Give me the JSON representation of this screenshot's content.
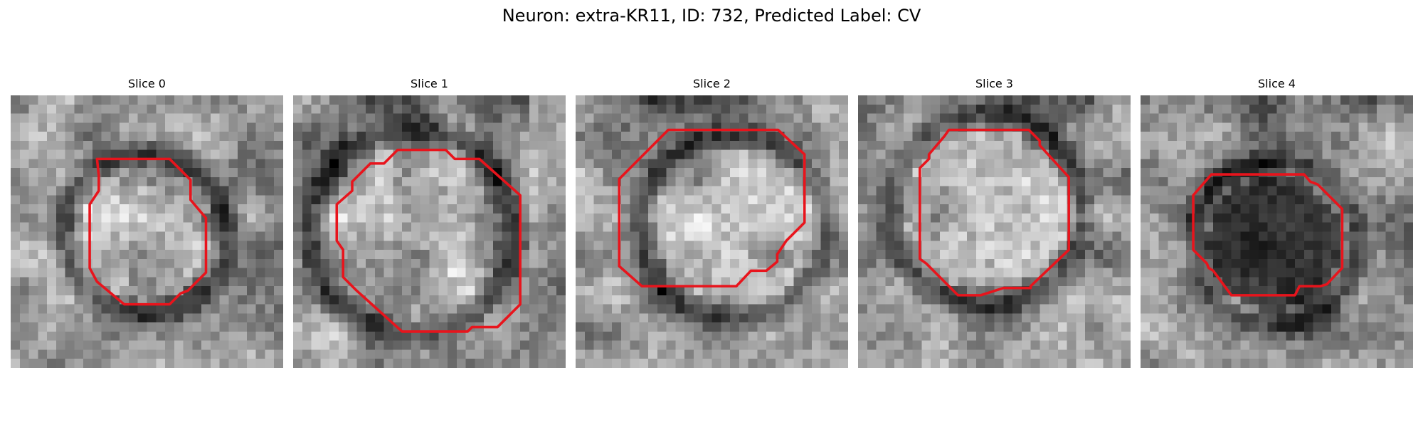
{
  "figure": {
    "title": "Neuron: extra-KR11, ID: 732, Predicted Label: CV"
  },
  "colors": {
    "contour": "#e8141c",
    "background": "#ffffff"
  },
  "slices": [
    {
      "title": "Slice 0",
      "seed": 11,
      "cell_tone": "bright",
      "membrane": "dark-ring"
    },
    {
      "title": "Slice 1",
      "seed": 23,
      "cell_tone": "bright",
      "membrane": "dark-ring"
    },
    {
      "title": "Slice 2",
      "seed": 37,
      "cell_tone": "bright",
      "membrane": "dark-ring"
    },
    {
      "title": "Slice 3",
      "seed": 41,
      "cell_tone": "bright",
      "membrane": "dark-ring"
    },
    {
      "title": "Slice 4",
      "seed": 59,
      "cell_tone": "dark",
      "membrane": "dark-ring"
    }
  ]
}
